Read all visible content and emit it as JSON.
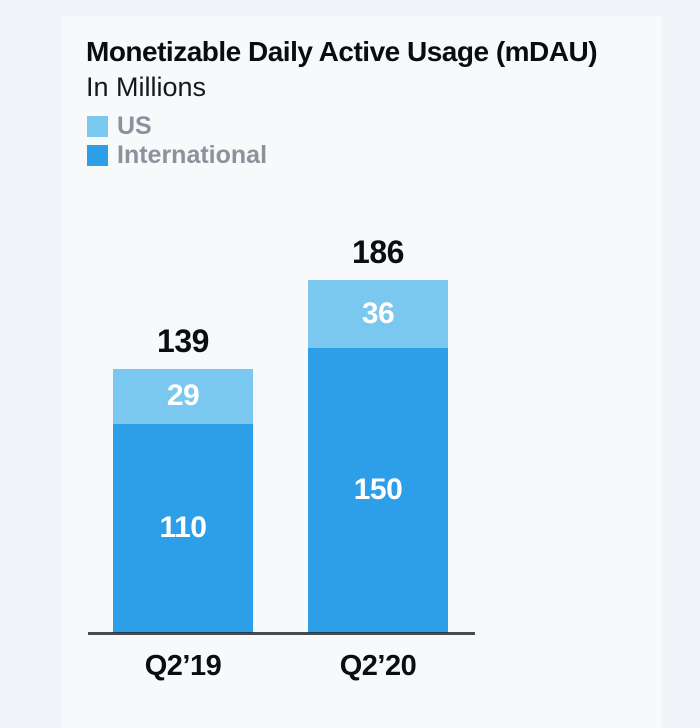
{
  "header": {
    "title": "Monetizable Daily Active Usage (mDAU)",
    "subtitle": "In Millions"
  },
  "legend": {
    "items": [
      {
        "label": "US",
        "color": "#7ac7f0"
      },
      {
        "label": "International",
        "color": "#2d9fe9"
      }
    ]
  },
  "chart_data": {
    "type": "bar",
    "stacked": true,
    "title": "Monetizable Daily Active Usage (mDAU)",
    "subtitle": "In Millions",
    "ylabel": "Millions",
    "grid": false,
    "legend_position": "top-left",
    "categories": [
      "Q2’19",
      "Q2’20"
    ],
    "series": [
      {
        "name": "US",
        "color": "#7ac7f0",
        "values": [
          29,
          36
        ]
      },
      {
        "name": "International",
        "color": "#2d9fe9",
        "values": [
          110,
          150
        ]
      }
    ],
    "totals": [
      139,
      186
    ]
  },
  "colors": {
    "background_outer": "#f0f3f7",
    "background_card": "#f7f9fa",
    "title_text": "#0a0c0e",
    "legend_text": "#8a939c",
    "bar_value_text": "#0b0d0f",
    "in_bar_text": "#ffffff",
    "axis_line": "#53575c"
  }
}
